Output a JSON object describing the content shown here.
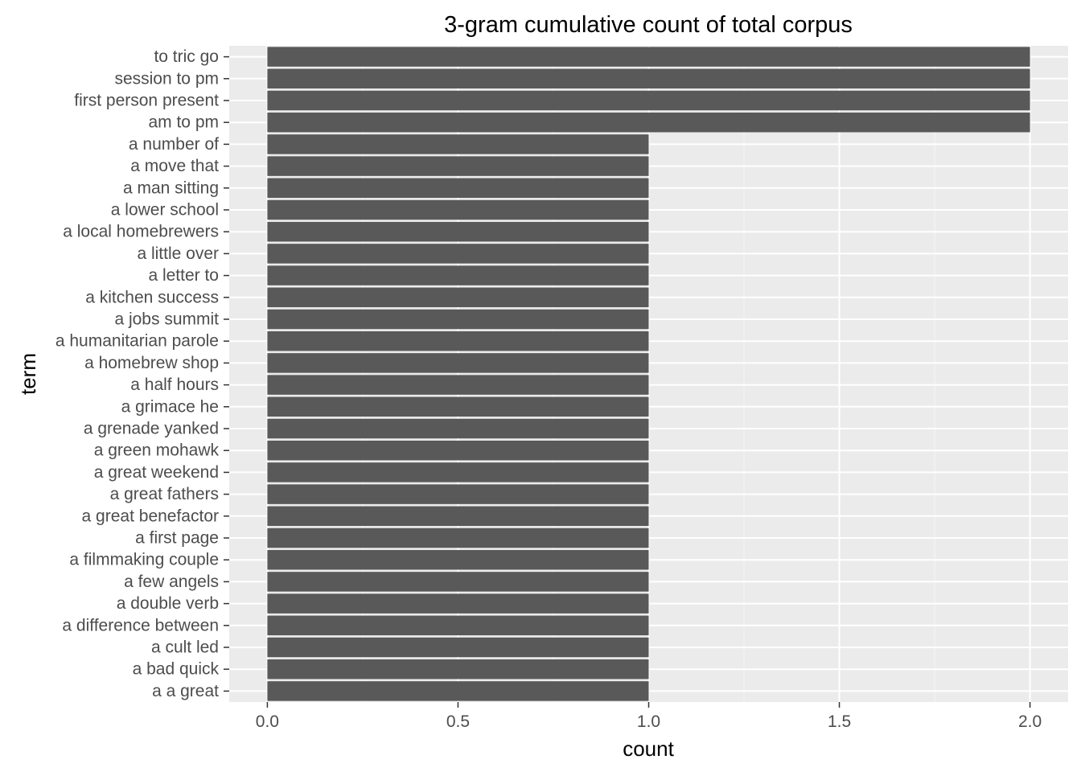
{
  "chart_data": {
    "type": "bar",
    "orientation": "horizontal",
    "title": "3-gram cumulative count of total corpus",
    "xlabel": "count",
    "ylabel": "term",
    "categories": [
      "to tric go",
      "session to pm",
      "first person present",
      "am to pm",
      "a number of",
      "a move that",
      "a man sitting",
      "a lower school",
      "a local homebrewers",
      "a little over",
      "a letter to",
      "a kitchen success",
      "a jobs summit",
      "a humanitarian parole",
      "a homebrew shop",
      "a half hours",
      "a grimace he",
      "a grenade yanked",
      "a green mohawk",
      "a great weekend",
      "a great fathers",
      "a great benefactor",
      "a first page",
      "a filmmaking couple",
      "a few angels",
      "a double verb",
      "a difference between",
      "a cult led",
      "a bad quick",
      "a a great"
    ],
    "values": [
      2,
      2,
      2,
      2,
      1,
      1,
      1,
      1,
      1,
      1,
      1,
      1,
      1,
      1,
      1,
      1,
      1,
      1,
      1,
      1,
      1,
      1,
      1,
      1,
      1,
      1,
      1,
      1,
      1,
      1
    ],
    "xlim": [
      -0.1,
      2.1
    ],
    "xticks": [
      0.0,
      0.5,
      1.0,
      1.5,
      2.0
    ],
    "xtick_labels": [
      "0.0",
      "0.5",
      "1.0",
      "1.5",
      "2.0"
    ],
    "grid": true,
    "colors": {
      "panel_background": "#ebebeb",
      "grid_major": "#ffffff",
      "bar_fill": "#595959",
      "tick_label": "#4d4d4d",
      "axis_title": "#000000"
    }
  }
}
